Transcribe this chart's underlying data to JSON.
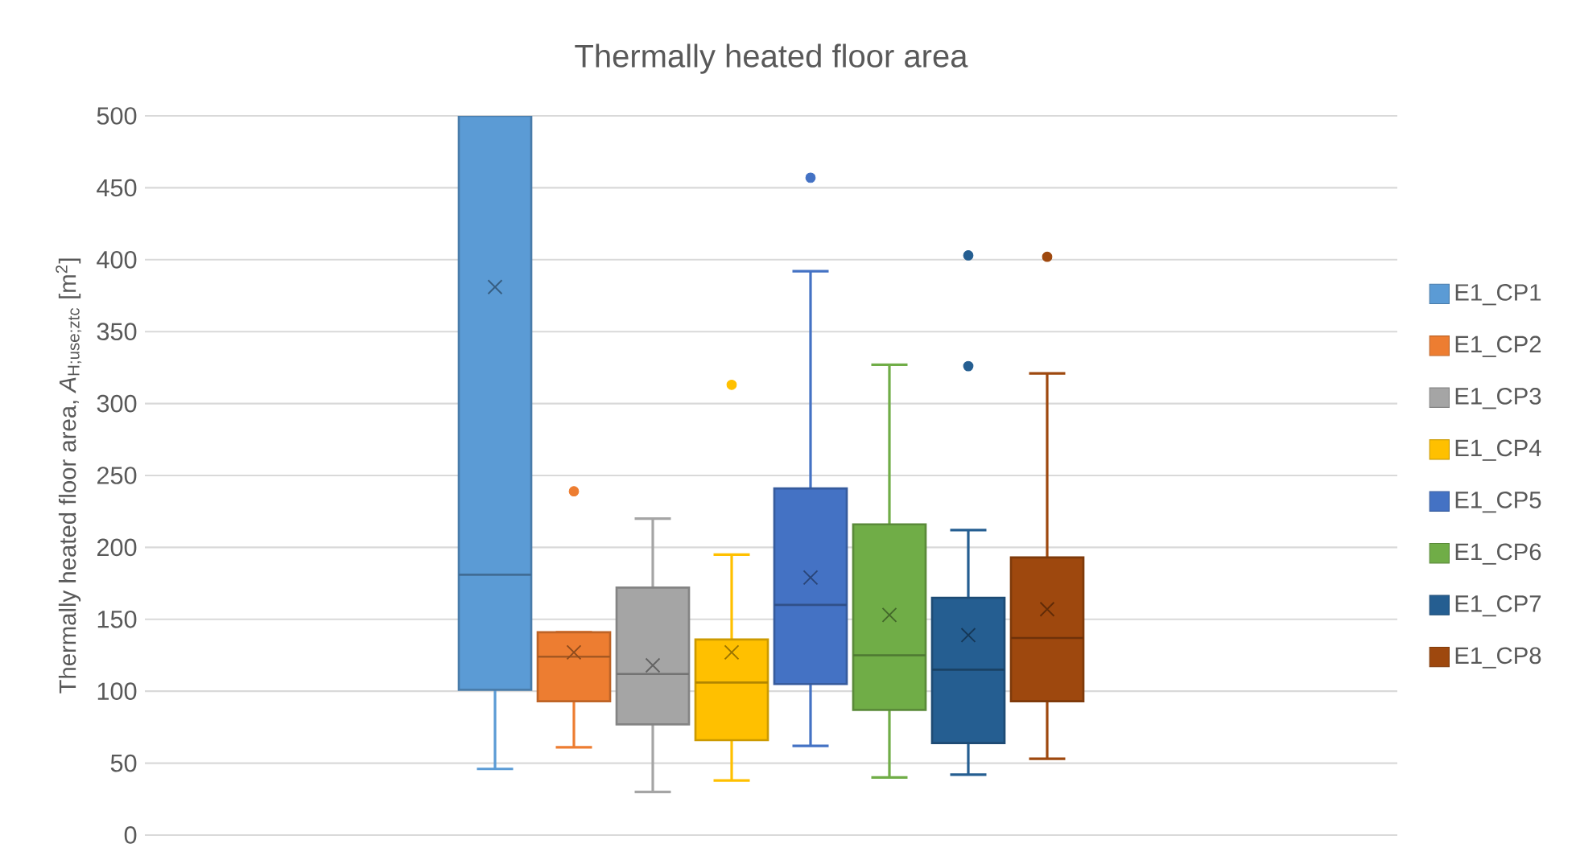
{
  "chart_data": {
    "type": "box",
    "title": "Thermally heated floor area",
    "ylabel": "Thermally heated floor area, *A*$_{H;use;ztc}$ [m$^{2}$]",
    "categories": [
      null
    ],
    "ylim": [
      0,
      500
    ],
    "yticks": [
      0,
      50,
      100,
      150,
      200,
      250,
      300,
      350,
      400,
      450,
      500
    ],
    "grid": "y",
    "legend": "right",
    "tick_labels": "y",
    "marker": "cross",
    "series": [
      {
        "name": "E1_CP1",
        "color": "#5b9bd5",
        "boxes": [
          {
            "low": 46,
            "q1": 101,
            "median": 181,
            "q3": 500,
            "high": 500,
            "mean": 381
          }
        ]
      },
      {
        "name": "E1_CP2",
        "color": "#ed7d31",
        "boxes": [
          {
            "low": 61,
            "q1": 93,
            "median": 124,
            "q3": 141,
            "high": 141,
            "mean": 127,
            "outliers": [
              239
            ]
          }
        ]
      },
      {
        "name": "E1_CP3",
        "color": "#a5a5a5",
        "boxes": [
          {
            "low": 30,
            "q1": 77,
            "median": 112,
            "q3": 172,
            "high": 220,
            "mean": 118
          }
        ]
      },
      {
        "name": "E1_CP4",
        "color": "#ffc000",
        "boxes": [
          {
            "low": 38,
            "q1": 66,
            "median": 106,
            "q3": 136,
            "high": 195,
            "mean": 127,
            "outliers": [
              313
            ]
          }
        ]
      },
      {
        "name": "E1_CP5",
        "color": "#4472c4",
        "boxes": [
          {
            "low": 62,
            "q1": 105,
            "median": 160,
            "q3": 241,
            "high": 392,
            "mean": 179,
            "outliers": [
              457
            ]
          }
        ]
      },
      {
        "name": "E1_CP6",
        "color": "#70ad47",
        "boxes": [
          {
            "low": 40,
            "q1": 87,
            "median": 125,
            "q3": 216,
            "high": 327,
            "mean": 153
          }
        ]
      },
      {
        "name": "E1_CP7",
        "color": "#255e91",
        "boxes": [
          {
            "low": 42,
            "q1": 64,
            "median": 115,
            "q3": 165,
            "high": 212,
            "mean": 139,
            "outliers": [
              326,
              403
            ]
          }
        ]
      },
      {
        "name": "E1_CP8",
        "color": "#9e480e",
        "boxes": [
          {
            "low": 53,
            "q1": 93,
            "median": 137,
            "q3": 193,
            "high": 321,
            "mean": 157,
            "outliers": [
              402
            ]
          }
        ]
      }
    ]
  }
}
